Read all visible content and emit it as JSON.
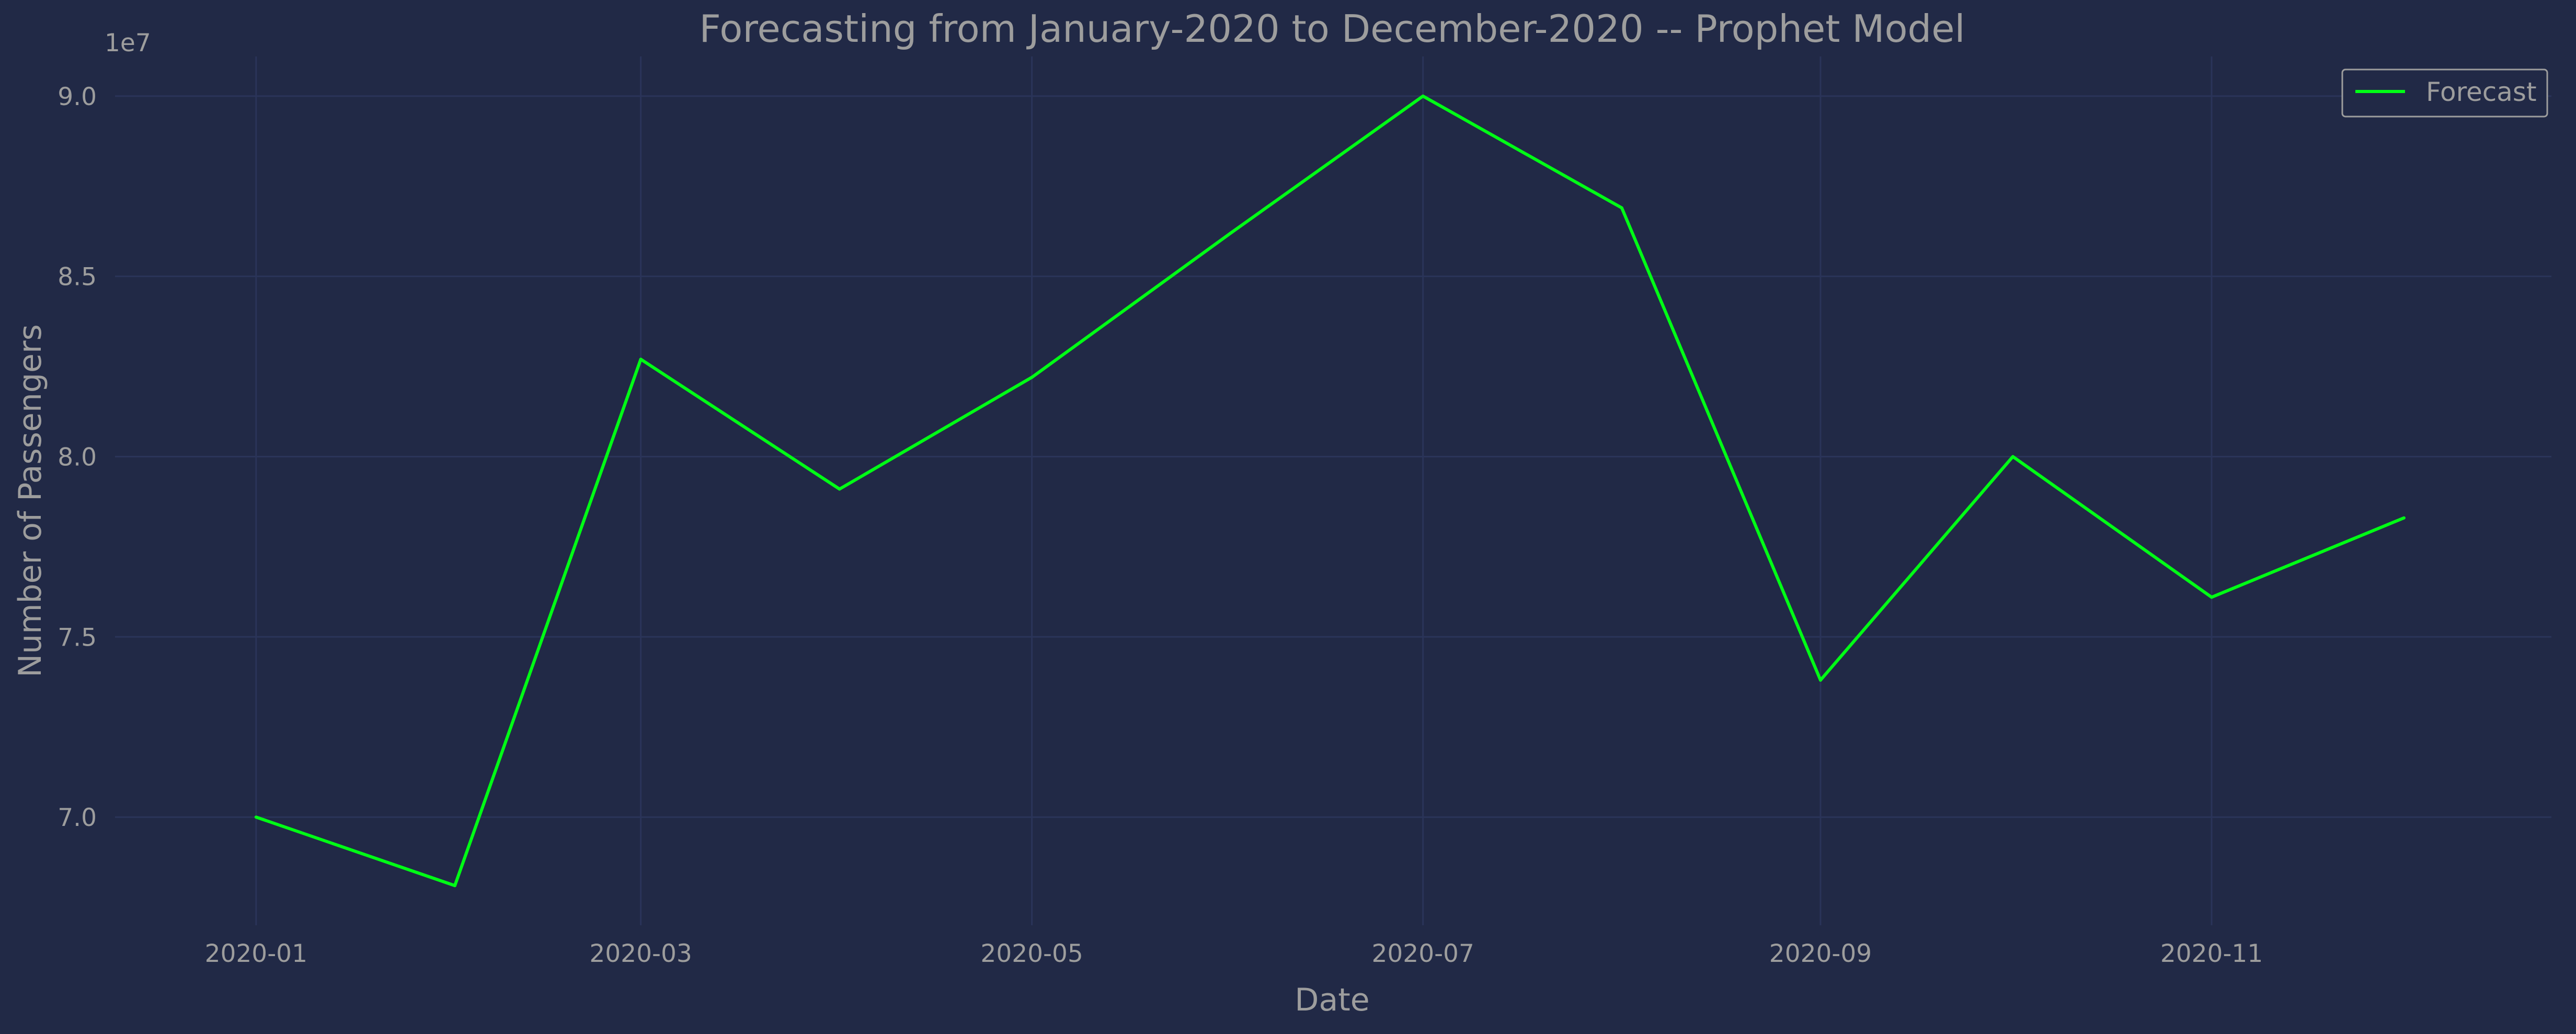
{
  "chart_data": {
    "type": "line",
    "title": "Forecasting from January-2020 to December-2020 -- Prophet Model",
    "xlabel": "Date",
    "ylabel": "Number of Passengers",
    "y_offset_label": "1e7",
    "y_scale": 10000000,
    "x": [
      "2020-01-01",
      "2020-02-01",
      "2020-03-01",
      "2020-04-01",
      "2020-05-01",
      "2020-06-01",
      "2020-07-01",
      "2020-08-01",
      "2020-09-01",
      "2020-10-01",
      "2020-11-01",
      "2020-12-01"
    ],
    "series": [
      {
        "name": "Forecast",
        "color": "#00ff15",
        "values": [
          70000000,
          68100000,
          82700000,
          79100000,
          82200000,
          86200000,
          90000000,
          86900000,
          73800000,
          80000000,
          76100000,
          78300000
        ]
      }
    ],
    "x_ticks": [
      "2020-01",
      "2020-03",
      "2020-05",
      "2020-07",
      "2020-09",
      "2020-11"
    ],
    "y_ticks": [
      "7.0",
      "7.5",
      "8.0",
      "8.5",
      "9.0"
    ],
    "y_tick_values": [
      70000000,
      75000000,
      80000000,
      85000000,
      90000000
    ],
    "xlim": [
      "2019-12-10",
      "2020-12-24"
    ],
    "ylim": [
      67000000,
      91100000
    ],
    "grid": true,
    "legend": "top-right",
    "colors": {
      "background": "#212946",
      "grid": "#2A3459",
      "text": "#9d9d9d",
      "legend_border": "#9d9d9d"
    }
  }
}
